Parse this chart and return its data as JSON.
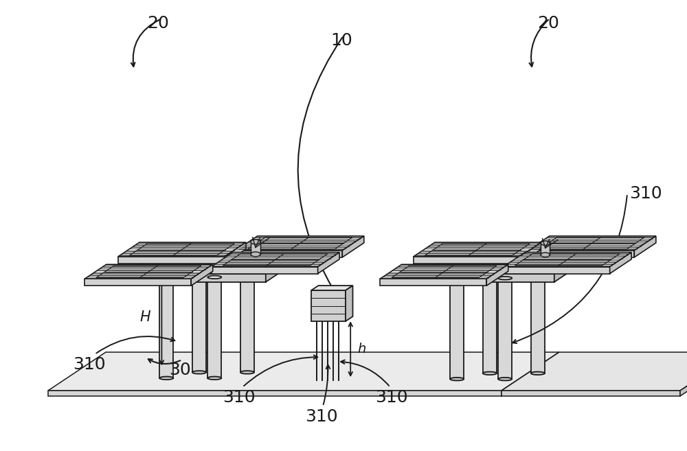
{
  "bg_color": "#ffffff",
  "line_color": "#1a1a1a",
  "figsize": [
    10.0,
    6.57
  ],
  "dpi": 100,
  "labels": {
    "20_L": "20",
    "20_R": "20",
    "10": "10",
    "30": "30",
    "H": "H",
    "h": "h",
    "310": "310"
  },
  "perspective": {
    "skx": 0.38,
    "sky": 0.25
  }
}
